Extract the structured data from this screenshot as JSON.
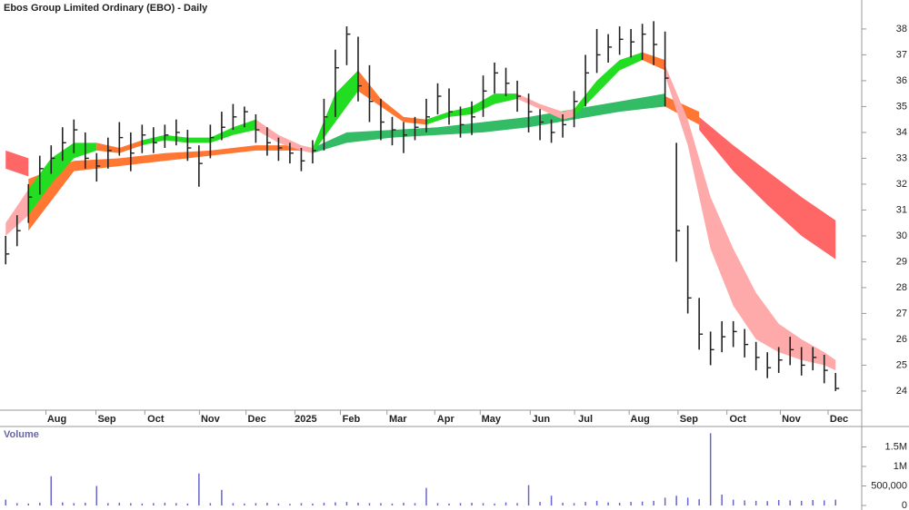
{
  "chart_data": [
    {
      "type": "hlc",
      "title": "Ebos Group Limited Ordinary (EBO) - Daily",
      "high": [
        30.0,
        30.8,
        32.0,
        33.1,
        33.5,
        34.2,
        34.5,
        34.0,
        33.2,
        33.8,
        34.4,
        34.0,
        34.3,
        34.2,
        34.3,
        34.5,
        34.1,
        33.5,
        34.3,
        34.8,
        35.1,
        35.0,
        34.7,
        34.2,
        33.8,
        33.6,
        33.4,
        33.7,
        35.3,
        37.2,
        38.1,
        37.7,
        36.6,
        35.3,
        34.6,
        34.4,
        34.6,
        35.3,
        35.9,
        35.7,
        35.0,
        35.2,
        36.2,
        36.7,
        36.5,
        36.0,
        35.5,
        34.9,
        34.5,
        34.7,
        35.6,
        37.0,
        38.0,
        37.8,
        38.1,
        38.0,
        38.2,
        38.3,
        37.9,
        33.6,
        30.4,
        27.6,
        26.3,
        26.7,
        26.7,
        26.4,
        25.9,
        25.5,
        25.7,
        26.1,
        25.7,
        25.7,
        25.4,
        24.7
      ],
      "low": [
        28.9,
        29.6,
        30.5,
        31.6,
        32.4,
        32.9,
        33.2,
        32.6,
        32.1,
        32.6,
        33.1,
        32.5,
        33.2,
        33.2,
        33.4,
        33.5,
        32.9,
        31.9,
        33.0,
        33.7,
        34.1,
        34.2,
        33.6,
        33.1,
        32.9,
        32.8,
        32.5,
        32.8,
        33.3,
        34.6,
        36.6,
        35.2,
        34.4,
        33.7,
        33.5,
        33.2,
        33.7,
        34.0,
        34.7,
        34.3,
        33.8,
        33.9,
        34.6,
        35.5,
        35.4,
        34.8,
        34.0,
        33.7,
        33.6,
        33.8,
        34.2,
        35.0,
        36.3,
        36.7,
        37.0,
        36.9,
        36.8,
        36.6,
        35.0,
        29.0,
        27.0,
        25.6,
        25.0,
        25.5,
        25.7,
        25.3,
        24.8,
        24.5,
        24.7,
        25.0,
        24.6,
        24.8,
        24.3,
        24.0
      ],
      "close": [
        29.3,
        30.2,
        31.5,
        32.6,
        33.0,
        33.6,
        34.1,
        33.0,
        32.7,
        33.3,
        33.8,
        33.2,
        33.9,
        33.6,
        33.9,
        34.0,
        33.4,
        32.8,
        33.8,
        34.2,
        34.6,
        34.8,
        34.1,
        33.6,
        33.4,
        33.2,
        32.9,
        33.3,
        34.6,
        36.5,
        37.8,
        35.8,
        35.2,
        34.4,
        34.1,
        33.9,
        34.2,
        34.6,
        35.4,
        34.8,
        34.3,
        34.6,
        35.6,
        36.3,
        35.9,
        35.4,
        34.8,
        34.4,
        34.0,
        34.3,
        35.2,
        36.3,
        37.0,
        37.3,
        37.6,
        37.5,
        37.8,
        37.4,
        36.1,
        30.2,
        27.6,
        26.2,
        25.6,
        26.1,
        26.3,
        25.8,
        25.3,
        24.9,
        25.2,
        25.6,
        25.0,
        25.3,
        24.8,
        24.1
      ],
      "bar_color": "#222222",
      "ribbons": [
        {
          "color": "#ff6666",
          "x": [
            0,
            2
          ],
          "upper": [
            33.3,
            33.0
          ],
          "lower": [
            32.6,
            32.3
          ]
        },
        {
          "color": "#ff7733",
          "x": [
            2,
            6,
            10,
            14,
            18,
            22,
            26
          ],
          "upper": [
            32.2,
            32.9,
            33.0,
            33.2,
            33.3,
            33.5,
            33.5
          ],
          "lower": [
            30.2,
            32.5,
            32.7,
            32.9,
            33.1,
            33.3,
            33.3
          ]
        },
        {
          "color": "#33bb66",
          "x": [
            27,
            30,
            34,
            38,
            42,
            46,
            50,
            54,
            58
          ],
          "upper": [
            33.4,
            34.0,
            34.1,
            34.2,
            34.4,
            34.6,
            34.9,
            35.2,
            35.5
          ],
          "lower": [
            33.2,
            33.6,
            33.8,
            33.9,
            34.0,
            34.2,
            34.5,
            34.8,
            35.0
          ]
        },
        {
          "color": "#ff7733",
          "x": [
            58,
            61
          ],
          "upper": [
            35.4,
            34.8
          ],
          "lower": [
            35.0,
            34.3
          ]
        },
        {
          "color": "#ff6666",
          "x": [
            61,
            64,
            67,
            70,
            73
          ],
          "upper": [
            34.6,
            33.5,
            32.5,
            31.5,
            30.6
          ],
          "lower": [
            34.1,
            32.5,
            31.2,
            30.0,
            29.1
          ]
        },
        {
          "color": "#ffaaaa",
          "x": [
            0,
            2
          ],
          "upper": [
            30.5,
            31.8
          ],
          "lower": [
            30.0,
            30.8
          ]
        },
        {
          "color": "#22dd22",
          "x": [
            2,
            4,
            6,
            8
          ],
          "upper": [
            31.8,
            33.0,
            33.6,
            33.6
          ],
          "lower": [
            30.8,
            32.0,
            33.0,
            33.3
          ]
        },
        {
          "color": "#ff7733",
          "x": [
            8,
            10,
            12
          ],
          "upper": [
            33.6,
            33.4,
            33.7
          ],
          "lower": [
            33.3,
            33.2,
            33.5
          ]
        },
        {
          "color": "#22dd22",
          "x": [
            12,
            14,
            16,
            18,
            20,
            22
          ],
          "upper": [
            33.7,
            33.9,
            33.8,
            33.8,
            34.2,
            34.5
          ],
          "lower": [
            33.5,
            33.7,
            33.6,
            33.6,
            33.9,
            34.1
          ]
        },
        {
          "color": "#ffaaaa",
          "x": [
            22,
            24,
            26,
            27
          ],
          "upper": [
            34.5,
            33.9,
            33.5,
            33.4
          ],
          "lower": [
            34.1,
            33.6,
            33.3,
            33.2
          ]
        },
        {
          "color": "#22dd22",
          "x": [
            27,
            29,
            31
          ],
          "upper": [
            33.4,
            35.5,
            36.4
          ],
          "lower": [
            33.2,
            34.4,
            35.6
          ]
        },
        {
          "color": "#ff7733",
          "x": [
            31,
            33,
            35,
            37
          ],
          "upper": [
            36.4,
            35.3,
            34.6,
            34.5
          ],
          "lower": [
            35.6,
            35.0,
            34.4,
            34.3
          ]
        },
        {
          "color": "#22dd22",
          "x": [
            37,
            39,
            41,
            43,
            45
          ],
          "upper": [
            34.5,
            34.8,
            35.0,
            35.5,
            35.5
          ],
          "lower": [
            34.3,
            34.6,
            34.7,
            35.1,
            35.3
          ]
        },
        {
          "color": "#ffaaaa",
          "x": [
            45,
            47,
            49,
            50
          ],
          "upper": [
            35.5,
            35.1,
            34.8,
            34.9
          ],
          "lower": [
            35.3,
            34.9,
            34.5,
            34.6
          ]
        },
        {
          "color": "#22dd22",
          "x": [
            50,
            52,
            54,
            56
          ],
          "upper": [
            34.9,
            36.0,
            36.8,
            37.1
          ],
          "lower": [
            34.6,
            35.5,
            36.4,
            36.8
          ]
        },
        {
          "color": "#ff7733",
          "x": [
            56,
            58
          ],
          "upper": [
            37.1,
            36.8
          ],
          "lower": [
            36.8,
            36.4
          ]
        },
        {
          "color": "#ffaaaa",
          "x": [
            58,
            60,
            62,
            64,
            66,
            68,
            70,
            72,
            73
          ],
          "upper": [
            36.6,
            34.5,
            31.5,
            29.5,
            27.8,
            26.6,
            26.0,
            25.5,
            25.2
          ],
          "lower": [
            36.2,
            33.5,
            29.5,
            27.3,
            26.0,
            25.5,
            25.2,
            25.0,
            24.8
          ]
        }
      ],
      "xlim": [
        -0.5,
        75.3
      ],
      "xticks": [
        {
          "value": 4.5,
          "label": "Aug"
        },
        {
          "value": 8.9,
          "label": "Sep"
        },
        {
          "value": 13.2,
          "label": "Oct"
        },
        {
          "value": 18.0,
          "label": "Nov"
        },
        {
          "value": 22.1,
          "label": "Dec"
        },
        {
          "value": 26.4,
          "label": "2025"
        },
        {
          "value": 30.4,
          "label": "Feb"
        },
        {
          "value": 34.5,
          "label": "Mar"
        },
        {
          "value": 38.7,
          "label": "Apr"
        },
        {
          "value": 42.7,
          "label": "May"
        },
        {
          "value": 47.1,
          "label": "Jun"
        },
        {
          "value": 51.0,
          "label": "Jul"
        },
        {
          "value": 55.8,
          "label": "Aug"
        },
        {
          "value": 60.1,
          "label": "Sep"
        },
        {
          "value": 64.4,
          "label": "Oct"
        },
        {
          "value": 69.1,
          "label": "Nov"
        },
        {
          "value": 73.3,
          "label": "Dec"
        }
      ],
      "ylim": [
        23.26,
        39.12
      ],
      "yticks": [
        24,
        25,
        26,
        27,
        28,
        29,
        30,
        31,
        32,
        33,
        34,
        35,
        36,
        37,
        38
      ]
    },
    {
      "type": "bar",
      "title": "Volume",
      "color": "#6666cc",
      "values": [
        150000,
        60000,
        50000,
        70000,
        750000,
        80000,
        60000,
        70000,
        500000,
        60000,
        70000,
        60000,
        50000,
        60000,
        70000,
        60000,
        50000,
        820000,
        60000,
        400000,
        60000,
        50000,
        60000,
        70000,
        50000,
        40000,
        60000,
        50000,
        70000,
        80000,
        90000,
        70000,
        60000,
        60000,
        50000,
        70000,
        60000,
        450000,
        60000,
        50000,
        60000,
        70000,
        60000,
        50000,
        80000,
        60000,
        520000,
        90000,
        250000,
        70000,
        60000,
        90000,
        120000,
        80000,
        70000,
        90000,
        100000,
        120000,
        200000,
        250000,
        200000,
        160000,
        1850000,
        280000,
        150000,
        130000,
        120000,
        110000,
        140000,
        130000,
        120000,
        140000,
        130000,
        150000
      ],
      "xlim": [
        -0.5,
        75.3
      ],
      "ylim": [
        0,
        2000000
      ],
      "yticks": [
        0,
        {
          "value": 500000,
          "label": "500,000"
        },
        {
          "value": 1000000,
          "label": "1M"
        },
        {
          "value": 1500000,
          "label": "1.5M"
        }
      ]
    }
  ]
}
